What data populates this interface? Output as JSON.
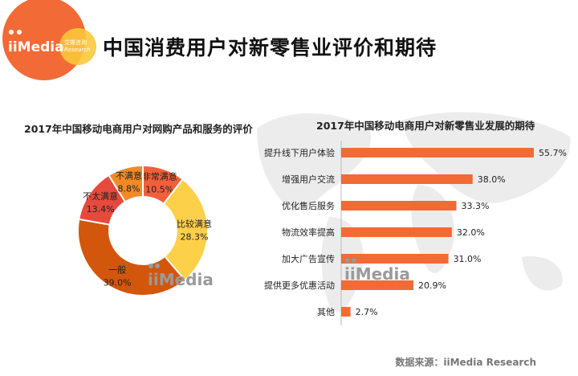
{
  "header": {
    "title": "中国消费用户对新零售业评价和期待",
    "logo_text": "iiMedia 艾媒咨询 Research"
  },
  "watermark": "iiMedia 艾媒咨询 Research",
  "source": "数据来源：iiMedia Research",
  "colors": {
    "bar": "#f26a35",
    "logo_orange": "#f26a35",
    "logo_yellow": "#fcc83c"
  },
  "chart_data": [
    {
      "type": "pie",
      "donut": true,
      "title": "2017年中国移动电商用户对网购产品和服务的评价",
      "slices": [
        {
          "label": "非常满意",
          "value": 10.5,
          "display": "10.5%",
          "color": "#f0603c"
        },
        {
          "label": "比较满意",
          "value": 28.3,
          "display": "28.3%",
          "color": "#fdd04a"
        },
        {
          "label": "一般",
          "value": 39.0,
          "display": "39.0%",
          "color": "#d2560c"
        },
        {
          "label": "不太满意",
          "value": 13.4,
          "display": "13.4%",
          "color": "#e64a3c"
        },
        {
          "label": "不满意",
          "value": 8.8,
          "display": "8.8%",
          "color": "#f18a26"
        }
      ]
    },
    {
      "type": "bar",
      "orientation": "horizontal",
      "title": "2017年中国移动电商用户对新零售业发展的期待",
      "categories": [
        "提升线下用户体验",
        "增强用户交流",
        "优化售后服务",
        "物流效率提高",
        "加大广告宣传",
        "提供更多优惠活动",
        "其他"
      ],
      "values": [
        55.7,
        38.0,
        33.3,
        32.0,
        31.0,
        20.9,
        2.7
      ],
      "labels": [
        "55.7%",
        "38.0%",
        "33.3%",
        "32.0%",
        "31.0%",
        "20.9%",
        "2.7%"
      ],
      "xlim": [
        0,
        55.7
      ]
    }
  ]
}
